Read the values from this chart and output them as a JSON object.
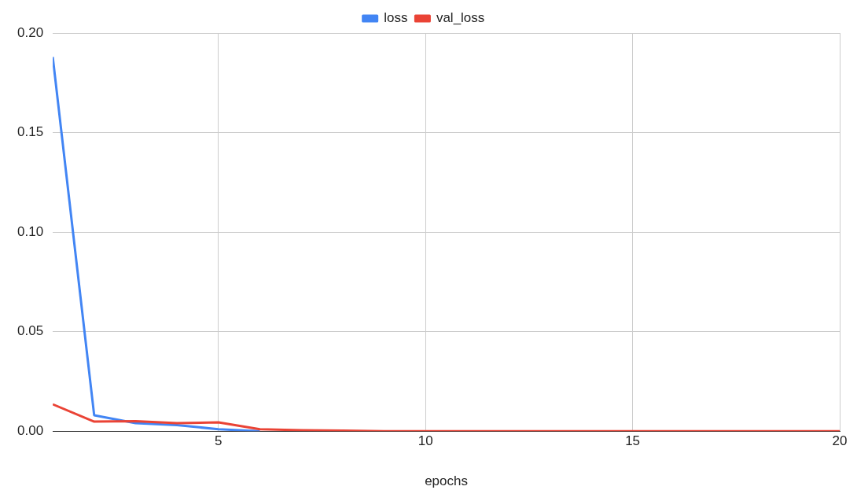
{
  "chart_data": {
    "type": "line",
    "xlabel": "epochs",
    "x": [
      1,
      2,
      3,
      4,
      5,
      6,
      7,
      8,
      9,
      10,
      11,
      12,
      13,
      14,
      15,
      16,
      17,
      18,
      19,
      20
    ],
    "series": [
      {
        "name": "loss",
        "color": "#4285f4",
        "values": [
          0.188,
          0.008,
          0.004,
          0.003,
          0.001,
          0,
          null,
          null,
          null,
          null,
          null,
          null,
          null,
          null,
          null,
          null,
          null,
          null,
          null,
          null
        ]
      },
      {
        "name": "val_loss",
        "color": "#ea4335",
        "values": [
          0.0135,
          0.0048,
          0.005,
          0.004,
          0.0044,
          0.001,
          0.0005,
          0.0003,
          0,
          0,
          0,
          0,
          0,
          0,
          0,
          0,
          0,
          0,
          0,
          0
        ]
      }
    ],
    "xlim": [
      1,
      20
    ],
    "xticks": [
      5,
      10,
      15,
      20
    ],
    "ylim": [
      0,
      0.2
    ],
    "yticks": [
      {
        "value": 0,
        "label": "0.00"
      },
      {
        "value": 0.05,
        "label": "0.05"
      },
      {
        "value": 0.1,
        "label": "0.10"
      },
      {
        "value": 0.15,
        "label": "0.15"
      },
      {
        "value": 0.2,
        "label": "0.20"
      }
    ],
    "grid": true,
    "legend": "top",
    "marker": "none",
    "line_style": "solid"
  }
}
